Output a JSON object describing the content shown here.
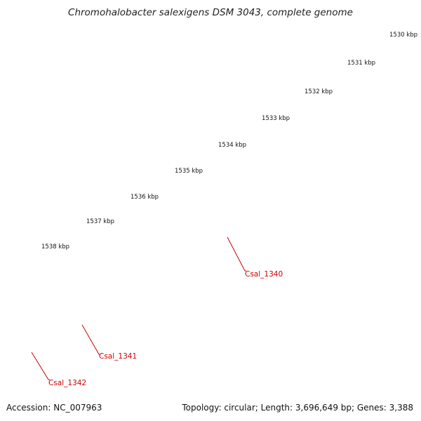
{
  "title": "Chromohalobacter salexigens DSM 3043, complete genome",
  "footer": {
    "accession": "Accession: NC_007963",
    "stats": "Topology: circular; Length: 3,696,649 bp; Genes: 3,388"
  },
  "ruler_labels": [
    "1530 kbp",
    "1531 kbp",
    "1532 kbp",
    "1533 kbp",
    "1534 kbp",
    "1535 kbp",
    "1536 kbp",
    "1537 kbp",
    "1538 kbp"
  ],
  "gene_labels": [
    "Csal_1340",
    "Csal_1341",
    "Csal_1342"
  ],
  "colors": {
    "forward_cds": "#e8000b",
    "reverse_cds_blue": "#4f83b3",
    "reverse_cds_cyan": "#00b4ee",
    "reverse_cds_pink": "#f08080",
    "reverse_cds_olive": "#6b8e23",
    "backbone": "#808080",
    "ticks": "#2e8b2e",
    "label": "#cc0000"
  }
}
